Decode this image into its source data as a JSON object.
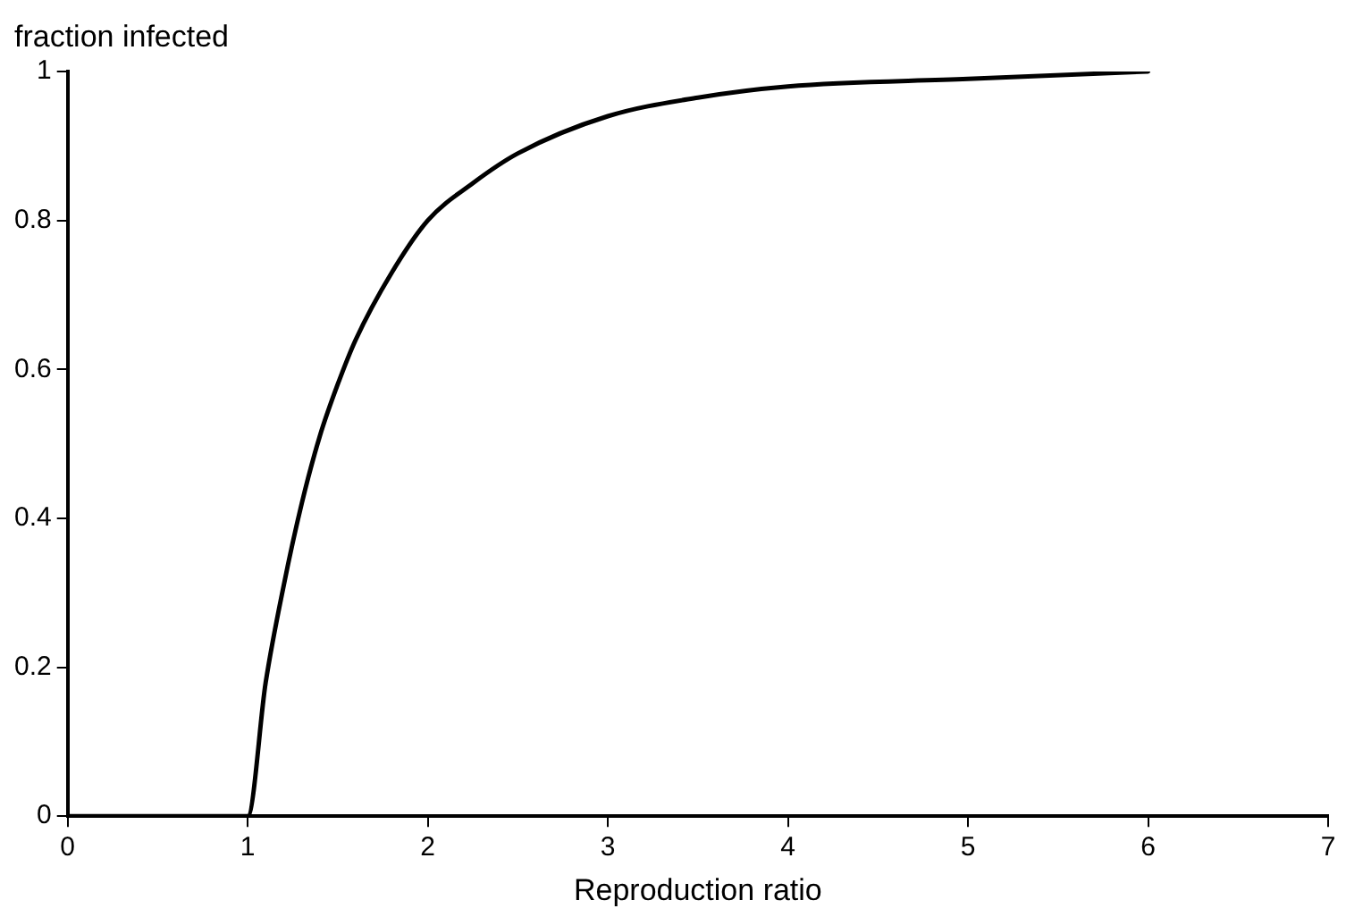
{
  "chart_data": {
    "type": "line",
    "xlabel": "Reproduction ratio",
    "ylabel": "fraction infected",
    "x": [
      0,
      0.5,
      1,
      1.1,
      1.2,
      1.3,
      1.4,
      1.5,
      1.6,
      1.8,
      2,
      2.25,
      2.5,
      3,
      3.5,
      4,
      5,
      6
    ],
    "series": [
      {
        "color": "#000000",
        "values": [
          0,
          0,
          0,
          0.18,
          0.31,
          0.42,
          0.51,
          0.58,
          0.64,
          0.73,
          0.8,
          0.85,
          0.89,
          0.94,
          0.965,
          0.98,
          0.99,
          1.0
        ]
      }
    ],
    "xlim": [
      0,
      7
    ],
    "xticks": [
      0,
      1,
      2,
      3,
      4,
      5,
      6,
      7
    ],
    "ylim": [
      0,
      1
    ],
    "yticks": [
      0,
      0.2,
      0.4,
      0.6,
      0.8,
      1
    ],
    "grid": false,
    "legend": false,
    "marker": "none",
    "line_style": "solid"
  }
}
